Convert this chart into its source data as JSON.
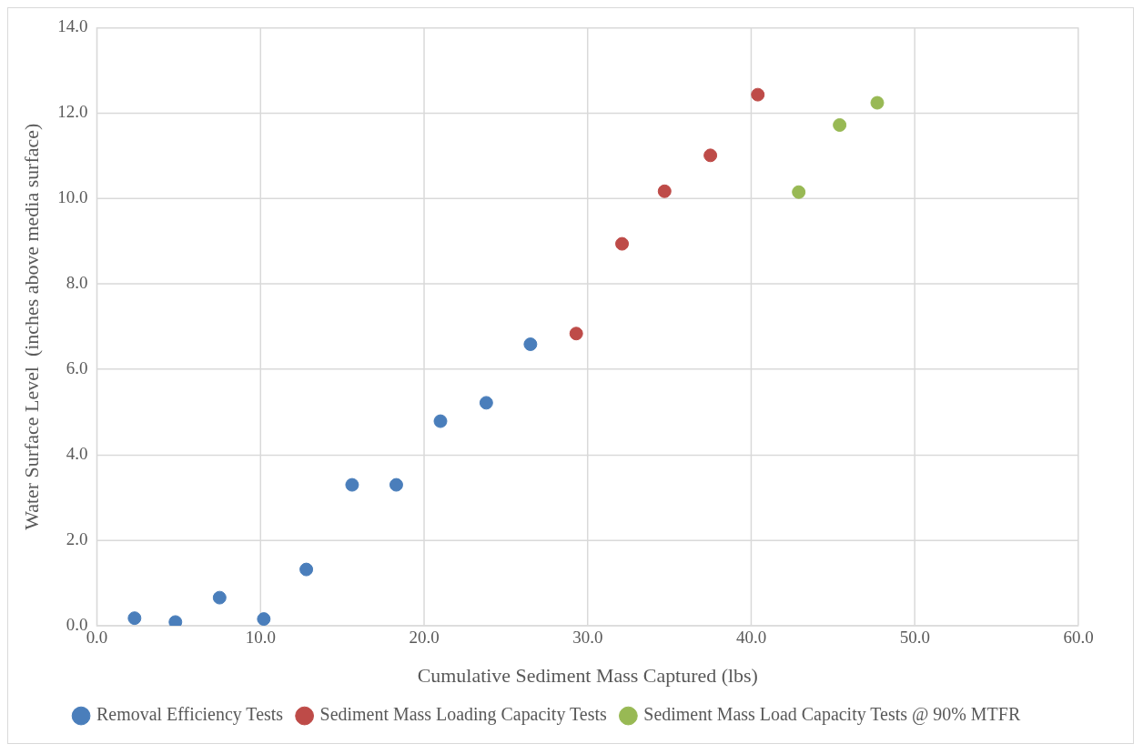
{
  "chart_data": {
    "type": "scatter",
    "xlabel": "Cumulative Sediment Mass Captured (lbs)",
    "ylabel": "Water Surface Level  (inches above media surface)",
    "xlim": [
      0,
      60
    ],
    "ylim": [
      0,
      14
    ],
    "xticks": [
      {
        "value": 0,
        "label": "0.0"
      },
      {
        "value": 10,
        "label": "10.0"
      },
      {
        "value": 20,
        "label": "20.0"
      },
      {
        "value": 30,
        "label": "30.0"
      },
      {
        "value": 40,
        "label": "40.0"
      },
      {
        "value": 50,
        "label": "50.0"
      },
      {
        "value": 60,
        "label": "60.0"
      }
    ],
    "yticks": [
      {
        "value": 0,
        "label": "0.0"
      },
      {
        "value": 2,
        "label": "2.0"
      },
      {
        "value": 4,
        "label": "4.0"
      },
      {
        "value": 6,
        "label": "6.0"
      },
      {
        "value": 8,
        "label": "8.0"
      },
      {
        "value": 10,
        "label": "10.0"
      },
      {
        "value": 12,
        "label": "12.0"
      },
      {
        "value": 14,
        "label": "14.0"
      }
    ],
    "grid": true,
    "legend": "bottom",
    "marker": "circle",
    "series": [
      {
        "name": "Removal Efficiency Tests",
        "color": "#4a7ebb",
        "x": [
          2.3,
          4.8,
          7.5,
          10.2,
          12.8,
          15.6,
          18.3,
          21.0,
          23.8,
          26.5
        ],
        "values": [
          0.18,
          0.09,
          0.66,
          0.16,
          1.32,
          3.3,
          3.3,
          4.79,
          5.22,
          6.59
        ]
      },
      {
        "name": "Sediment Mass Loading Capacity Tests",
        "color": "#be4b48",
        "x": [
          29.3,
          32.1,
          34.7,
          37.5,
          40.4
        ],
        "values": [
          6.84,
          8.94,
          10.17,
          11.01,
          12.43
        ]
      },
      {
        "name": "Sediment Mass Load Capacity Tests @ 90% MTFR",
        "color": "#98b954",
        "x": [
          42.9,
          45.4,
          47.7
        ],
        "values": [
          10.15,
          11.72,
          12.24
        ]
      }
    ]
  }
}
